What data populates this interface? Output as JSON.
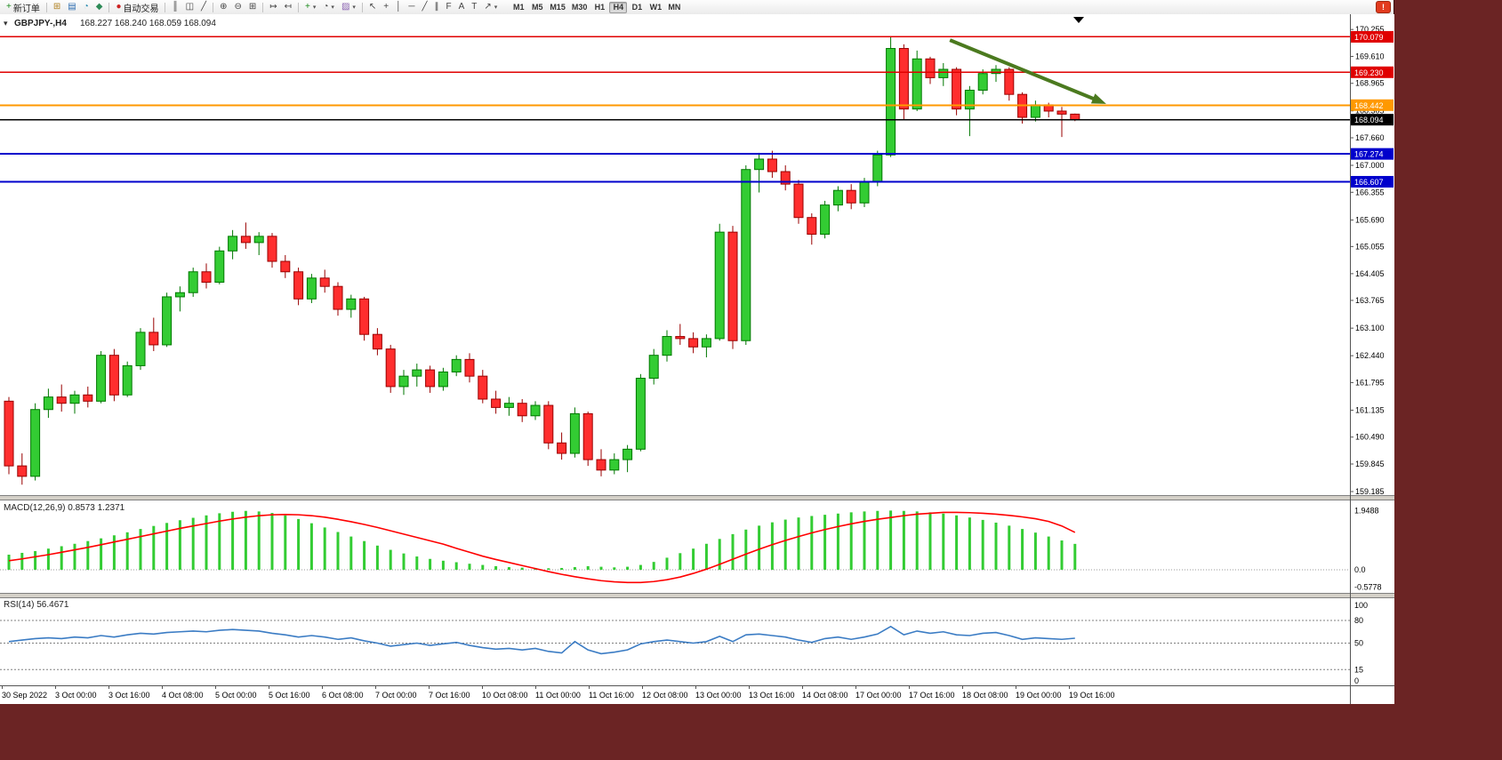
{
  "window": {
    "desktop_color": "#6B2424",
    "app_bg": "#FFFFFF"
  },
  "toolbar": {
    "groups": [
      {
        "items": [
          {
            "name": "new-order",
            "label": "新订单",
            "glyph": "+",
            "color": "#1a8a1a"
          }
        ]
      },
      {
        "items": [
          {
            "name": "new-chart",
            "glyph": "⊞",
            "color": "#b08020"
          },
          {
            "name": "market-watch",
            "glyph": "▤",
            "color": "#2b6cb0"
          },
          {
            "name": "data-window",
            "glyph": "◔",
            "color": "#2b8cb0"
          },
          {
            "name": "navigator",
            "glyph": "◆",
            "color": "#2e8b57"
          }
        ]
      },
      {
        "items": [
          {
            "name": "autotrading",
            "label": "自动交易",
            "glyph": "●",
            "color": "#cc2222"
          }
        ]
      },
      {
        "items": [
          {
            "name": "bar-chart",
            "glyph": "║",
            "color": "#444444"
          },
          {
            "name": "candle-chart",
            "glyph": "◫",
            "color": "#444444"
          },
          {
            "name": "line-chart",
            "glyph": "╱",
            "color": "#444444"
          }
        ]
      },
      {
        "items": [
          {
            "name": "zoom-in",
            "glyph": "⊕",
            "color": "#444444"
          },
          {
            "name": "zoom-out",
            "glyph": "⊖",
            "color": "#444444"
          },
          {
            "name": "tile-windows",
            "glyph": "⊞",
            "color": "#444444"
          }
        ]
      },
      {
        "items": [
          {
            "name": "auto-scroll",
            "glyph": "↦",
            "color": "#444444"
          },
          {
            "name": "chart-shift",
            "glyph": "↤",
            "color": "#444444"
          }
        ]
      },
      {
        "items": [
          {
            "name": "indicators",
            "glyph": "+",
            "color": "#1a8a1a",
            "dropdown": true
          },
          {
            "name": "periods",
            "glyph": "◔",
            "color": "#444444",
            "dropdown": true
          },
          {
            "name": "templates",
            "glyph": "▨",
            "color": "#8860b0",
            "dropdown": true
          }
        ]
      },
      {
        "items": [
          {
            "name": "cursor",
            "glyph": "↖",
            "color": "#444444"
          },
          {
            "name": "crosshair",
            "glyph": "+",
            "color": "#444444"
          },
          {
            "name": "vertical-line",
            "glyph": "│",
            "color": "#444444"
          },
          {
            "name": "horizontal-line",
            "glyph": "─",
            "color": "#444444"
          },
          {
            "name": "trendline",
            "glyph": "╱",
            "color": "#444444"
          },
          {
            "name": "channel",
            "glyph": "∥",
            "color": "#444444"
          },
          {
            "name": "fibonacci",
            "glyph": "F",
            "color": "#444444"
          },
          {
            "name": "text",
            "glyph": "A",
            "color": "#444444"
          },
          {
            "name": "text-label",
            "glyph": "T",
            "color": "#444444"
          },
          {
            "name": "arrows",
            "glyph": "↗",
            "color": "#444444",
            "dropdown": true
          }
        ]
      }
    ],
    "timeframes": [
      "M1",
      "M5",
      "M15",
      "M30",
      "H1",
      "H4",
      "D1",
      "W1",
      "MN"
    ],
    "active_timeframe": "H4",
    "alert_glyph": "!"
  },
  "chart": {
    "collapse_glyph": "▾",
    "title": "GBPJPY-,H4",
    "ohlc": "168.227 168.240 168.059 168.094"
  },
  "price_axis_ticks": [
    "170.255",
    "169.610",
    "168.965",
    "168.305",
    "167.660",
    "167.000",
    "166.355",
    "165.690",
    "165.055",
    "164.405",
    "163.765",
    "163.100",
    "162.440",
    "161.795",
    "161.135",
    "160.490",
    "159.845",
    "159.185"
  ],
  "hlines": [
    {
      "price": 170.079,
      "label": "170.079",
      "color": "#E00000",
      "width": 1.4,
      "badge": true
    },
    {
      "price": 169.23,
      "label": "169.230",
      "color": "#E00000",
      "width": 1.4,
      "badge": true
    },
    {
      "price": 168.442,
      "label": "168.442",
      "color": "#FF9900",
      "width": 2,
      "badge": true
    },
    {
      "price": 167.274,
      "label": "167.274",
      "color": "#0000CC",
      "width": 2,
      "badge": true
    },
    {
      "price": 166.607,
      "label": "166.607",
      "color": "#0000CC",
      "width": 2,
      "badge": true
    }
  ],
  "current_price": {
    "price": 168.094,
    "label": "168.094",
    "color": "#000000"
  },
  "indicators": {
    "macd": {
      "label": "MACD(12,26,9)",
      "value_main": "0.8573",
      "value_signal": "1.2371",
      "axis_labels": [
        "1.9488",
        "0.0",
        "-0.5778"
      ],
      "axis_values": [
        1.9488,
        0.0,
        -0.5778
      ],
      "histogram_color": "#33CC33",
      "signal_color": "#FF0000"
    },
    "rsi": {
      "label": "RSI(14)",
      "value": "56.4671",
      "axis_labels": [
        "100",
        "80",
        "50",
        "15",
        "0"
      ],
      "axis_values": [
        100,
        80,
        50,
        15,
        0
      ],
      "levels": [
        80,
        50,
        15
      ],
      "line_color": "#3B7CC4"
    }
  },
  "time_axis": [
    "30 Sep 2022",
    "3 Oct 00:00",
    "3 Oct 16:00",
    "4 Oct 08:00",
    "5 Oct 00:00",
    "5 Oct 16:00",
    "6 Oct 08:00",
    "7 Oct 00:00",
    "7 Oct 16:00",
    "10 Oct 08:00",
    "11 Oct 00:00",
    "11 Oct 16:00",
    "12 Oct 08:00",
    "13 Oct 00:00",
    "13 Oct 16:00",
    "14 Oct 08:00",
    "17 Oct 00:00",
    "17 Oct 16:00",
    "18 Oct 08:00",
    "19 Oct 00:00",
    "19 Oct 16:00"
  ],
  "chart_data": {
    "type": "candlestick",
    "symbol": "GBPJPY-",
    "timeframe": "H4",
    "ohlc_last": {
      "open": 168.227,
      "high": 168.24,
      "low": 168.059,
      "close": 168.094
    },
    "colors": {
      "bull_fill": "#33CC33",
      "bull_stroke": "#007700",
      "bear_fill": "#FF2E2E",
      "bear_stroke": "#990000"
    },
    "price_range": {
      "max": 170.45,
      "min": 159.1
    },
    "candles": [
      [
        161.35,
        161.45,
        159.6,
        159.8
      ],
      [
        159.8,
        160.1,
        159.35,
        159.55
      ],
      [
        159.55,
        161.3,
        159.45,
        161.15
      ],
      [
        161.15,
        161.65,
        160.95,
        161.45
      ],
      [
        161.45,
        161.75,
        161.1,
        161.3
      ],
      [
        161.3,
        161.6,
        161.05,
        161.5
      ],
      [
        161.5,
        161.7,
        161.2,
        161.35
      ],
      [
        161.35,
        162.55,
        161.3,
        162.45
      ],
      [
        162.45,
        162.6,
        161.35,
        161.5
      ],
      [
        161.5,
        162.3,
        161.45,
        162.2
      ],
      [
        162.2,
        163.1,
        162.1,
        163.0
      ],
      [
        163.0,
        163.35,
        162.55,
        162.7
      ],
      [
        162.7,
        163.95,
        162.65,
        163.85
      ],
      [
        163.85,
        164.1,
        163.5,
        163.95
      ],
      [
        163.95,
        164.55,
        163.85,
        164.45
      ],
      [
        164.45,
        164.65,
        164.05,
        164.2
      ],
      [
        164.2,
        165.05,
        164.15,
        164.95
      ],
      [
        164.95,
        165.45,
        164.75,
        165.3
      ],
      [
        165.3,
        165.63,
        165.0,
        165.15
      ],
      [
        165.15,
        165.4,
        164.85,
        165.3
      ],
      [
        165.3,
        165.38,
        164.55,
        164.7
      ],
      [
        164.7,
        164.85,
        164.3,
        164.45
      ],
      [
        164.45,
        164.55,
        163.65,
        163.8
      ],
      [
        163.8,
        164.4,
        163.7,
        164.3
      ],
      [
        164.3,
        164.5,
        163.95,
        164.1
      ],
      [
        164.1,
        164.2,
        163.4,
        163.55
      ],
      [
        163.55,
        163.9,
        163.35,
        163.8
      ],
      [
        163.8,
        163.85,
        162.8,
        162.95
      ],
      [
        162.95,
        163.1,
        162.45,
        162.6
      ],
      [
        162.6,
        162.7,
        161.55,
        161.7
      ],
      [
        161.7,
        162.1,
        161.5,
        161.95
      ],
      [
        161.95,
        162.25,
        161.7,
        162.1
      ],
      [
        162.1,
        162.2,
        161.55,
        161.7
      ],
      [
        161.7,
        162.15,
        161.6,
        162.05
      ],
      [
        162.05,
        162.45,
        161.95,
        162.35
      ],
      [
        162.35,
        162.5,
        161.8,
        161.95
      ],
      [
        161.95,
        162.1,
        161.3,
        161.4
      ],
      [
        161.4,
        161.6,
        161.05,
        161.2
      ],
      [
        161.2,
        161.45,
        161.0,
        161.3
      ],
      [
        161.3,
        161.4,
        160.85,
        161.0
      ],
      [
        161.0,
        161.35,
        160.9,
        161.25
      ],
      [
        161.25,
        161.35,
        160.2,
        160.35
      ],
      [
        160.35,
        160.6,
        159.95,
        160.1
      ],
      [
        160.1,
        161.2,
        160.0,
        161.05
      ],
      [
        161.05,
        161.1,
        159.8,
        159.95
      ],
      [
        159.95,
        160.2,
        159.55,
        159.7
      ],
      [
        159.7,
        160.1,
        159.6,
        159.95
      ],
      [
        159.95,
        160.3,
        159.65,
        160.2
      ],
      [
        160.2,
        162.0,
        160.15,
        161.9
      ],
      [
        161.9,
        162.6,
        161.75,
        162.45
      ],
      [
        162.45,
        163.05,
        162.3,
        162.9
      ],
      [
        162.9,
        163.2,
        162.7,
        162.85
      ],
      [
        162.85,
        163.0,
        162.5,
        162.65
      ],
      [
        162.65,
        162.95,
        162.4,
        162.85
      ],
      [
        162.85,
        165.6,
        162.8,
        165.4
      ],
      [
        165.4,
        165.55,
        162.6,
        162.8
      ],
      [
        162.8,
        167.0,
        162.7,
        166.9
      ],
      [
        166.9,
        167.3,
        166.35,
        167.15
      ],
      [
        167.15,
        167.35,
        166.7,
        166.85
      ],
      [
        166.85,
        167.0,
        166.4,
        166.55
      ],
      [
        166.55,
        166.65,
        165.6,
        165.75
      ],
      [
        165.75,
        165.85,
        165.1,
        165.35
      ],
      [
        165.35,
        166.15,
        165.25,
        166.05
      ],
      [
        166.05,
        166.5,
        165.9,
        166.4
      ],
      [
        166.4,
        166.55,
        165.95,
        166.1
      ],
      [
        166.1,
        166.7,
        166.0,
        166.6
      ],
      [
        166.6,
        167.35,
        166.5,
        167.25
      ],
      [
        167.25,
        170.08,
        167.2,
        169.8
      ],
      [
        169.8,
        169.9,
        168.1,
        168.35
      ],
      [
        168.35,
        169.75,
        168.3,
        169.55
      ],
      [
        169.55,
        169.6,
        168.95,
        169.1
      ],
      [
        169.1,
        169.45,
        168.9,
        169.3
      ],
      [
        169.3,
        169.35,
        168.2,
        168.35
      ],
      [
        168.35,
        168.9,
        167.7,
        168.8
      ],
      [
        168.8,
        169.3,
        168.7,
        169.2
      ],
      [
        169.2,
        169.4,
        169.0,
        169.3
      ],
      [
        169.3,
        169.35,
        168.55,
        168.7
      ],
      [
        168.7,
        168.75,
        168.0,
        168.15
      ],
      [
        168.15,
        168.55,
        168.05,
        168.45
      ],
      [
        168.45,
        168.5,
        168.15,
        168.3
      ],
      [
        168.3,
        168.4,
        167.68,
        168.227
      ],
      [
        168.227,
        168.24,
        168.059,
        168.094
      ]
    ],
    "macd_histogram": [
      0.5,
      0.56,
      0.62,
      0.7,
      0.78,
      0.86,
      0.95,
      1.04,
      1.14,
      1.24,
      1.35,
      1.45,
      1.55,
      1.64,
      1.72,
      1.8,
      1.87,
      1.92,
      1.95,
      1.93,
      1.88,
      1.8,
      1.68,
      1.54,
      1.4,
      1.25,
      1.1,
      0.95,
      0.8,
      0.66,
      0.54,
      0.44,
      0.36,
      0.3,
      0.25,
      0.2,
      0.16,
      0.12,
      0.09,
      0.07,
      0.06,
      0.05,
      0.06,
      0.09,
      0.12,
      0.1,
      0.08,
      0.1,
      0.16,
      0.26,
      0.4,
      0.55,
      0.7,
      0.86,
      1.02,
      1.18,
      1.33,
      1.46,
      1.57,
      1.66,
      1.73,
      1.78,
      1.82,
      1.86,
      1.9,
      1.93,
      1.95,
      1.96,
      1.95,
      1.93,
      1.9,
      1.86,
      1.8,
      1.73,
      1.65,
      1.56,
      1.46,
      1.35,
      1.23,
      1.1,
      0.97,
      0.8573
    ],
    "macd_signal": [
      0.3,
      0.36,
      0.43,
      0.5,
      0.58,
      0.66,
      0.74,
      0.83,
      0.92,
      1.01,
      1.1,
      1.19,
      1.28,
      1.37,
      1.45,
      1.53,
      1.61,
      1.68,
      1.74,
      1.79,
      1.82,
      1.83,
      1.82,
      1.79,
      1.74,
      1.67,
      1.59,
      1.5,
      1.4,
      1.29,
      1.18,
      1.07,
      0.96,
      0.85,
      0.71,
      0.58,
      0.45,
      0.34,
      0.24,
      0.14,
      0.04,
      -0.06,
      -0.15,
      -0.23,
      -0.3,
      -0.36,
      -0.4,
      -0.42,
      -0.42,
      -0.39,
      -0.33,
      -0.24,
      -0.12,
      0.02,
      0.18,
      0.35,
      0.52,
      0.68,
      0.83,
      0.97,
      1.1,
      1.22,
      1.33,
      1.43,
      1.52,
      1.6,
      1.67,
      1.73,
      1.79,
      1.84,
      1.87,
      1.9,
      1.9,
      1.89,
      1.87,
      1.84,
      1.8,
      1.75,
      1.69,
      1.6,
      1.45,
      1.2371
    ],
    "rsi": [
      52,
      54,
      56,
      57,
      56,
      58,
      57,
      60,
      58,
      61,
      63,
      62,
      64,
      65,
      66,
      65,
      67,
      68,
      67,
      66,
      63,
      61,
      58,
      60,
      58,
      55,
      57,
      53,
      50,
      46,
      48,
      50,
      47,
      49,
      51,
      47,
      44,
      42,
      43,
      41,
      43,
      39,
      37,
      52,
      41,
      36,
      38,
      41,
      49,
      52,
      54,
      52,
      50,
      52,
      59,
      52,
      61,
      62,
      60,
      58,
      54,
      51,
      56,
      58,
      55,
      58,
      62,
      72,
      61,
      66,
      63,
      65,
      61,
      60,
      63,
      64,
      60,
      55,
      57,
      56,
      55,
      56.4671
    ],
    "trend_arrow": {
      "from_bar": 71.5,
      "from_price": 170.0,
      "to_bar": 83.0,
      "to_price": 168.52,
      "color": "#4B7A1F"
    }
  }
}
